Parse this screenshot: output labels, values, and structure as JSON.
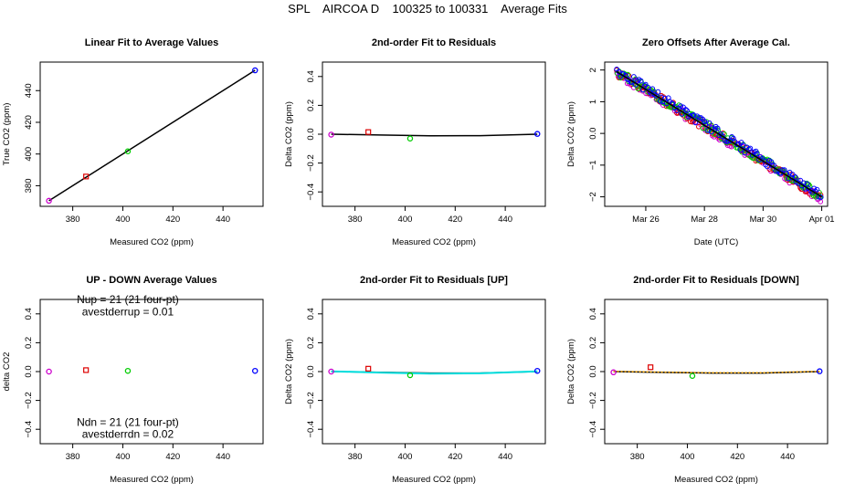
{
  "title": "SPL    AIRCOA D    100325 to 100331    Average Fits",
  "colors": {
    "black": "#000000",
    "red": "#dd0000",
    "green": "#00cc00",
    "blue": "#0000ff",
    "magenta": "#cc00cc",
    "cyan": "#00dddd",
    "orange": "#ffaa00"
  },
  "chart_data": [
    {
      "type": "scatter",
      "title": "Linear Fit to Average Values",
      "xlabel": "Measured CO2 (ppm)",
      "ylabel": "True CO2 (ppm)",
      "xlim": [
        367,
        456
      ],
      "ylim": [
        367,
        458
      ],
      "xticks": [
        380,
        400,
        420,
        440
      ],
      "yticks": [
        380,
        400,
        420,
        440
      ],
      "points": [
        {
          "x": 370.5,
          "y": 370.5,
          "color": "magenta"
        },
        {
          "x": 385.3,
          "y": 385.8,
          "color": "red"
        },
        {
          "x": 402.0,
          "y": 401.7,
          "color": "green"
        },
        {
          "x": 452.8,
          "y": 452.8,
          "color": "blue"
        }
      ],
      "lines": [
        {
          "color": "black",
          "points": [
            [
              370.5,
              370.5
            ],
            [
              452.8,
              452.8
            ]
          ]
        }
      ]
    },
    {
      "type": "scatter",
      "title": "2nd-order Fit to Residuals",
      "xlabel": "Measured CO2 (ppm)",
      "ylabel": "Delta CO2 (ppm)",
      "xlim": [
        367,
        456
      ],
      "ylim": [
        -0.5,
        0.5
      ],
      "xticks": [
        380,
        400,
        420,
        440
      ],
      "yticks": [
        -0.4,
        -0.2,
        0.0,
        0.2,
        0.4
      ],
      "points": [
        {
          "x": 370.5,
          "y": -0.003,
          "color": "magenta"
        },
        {
          "x": 385.3,
          "y": 0.015,
          "color": "red"
        },
        {
          "x": 402.0,
          "y": -0.03,
          "color": "green"
        },
        {
          "x": 452.8,
          "y": 0.002,
          "color": "blue"
        }
      ],
      "lines": [
        {
          "color": "black",
          "points": [
            [
              370.5,
              0.0
            ],
            [
              390,
              -0.006
            ],
            [
              410,
              -0.011
            ],
            [
              430,
              -0.01
            ],
            [
              452.8,
              0.0
            ]
          ]
        }
      ]
    },
    {
      "type": "scatter",
      "title": "Zero Offsets After Average Cal.",
      "xlabel": "Date (UTC)",
      "ylabel": "Delta CO2 (ppm)",
      "xlim": [
        24.6,
        32.2
      ],
      "ylim": [
        -2.3,
        2.25
      ],
      "xticks": [
        26,
        28,
        30,
        32
      ],
      "xticklabels": [
        "Mar 26",
        "Mar 28",
        "Mar 30",
        "Apr 01"
      ],
      "yticks": [
        -2,
        -1,
        0,
        1,
        2
      ],
      "series_colors": [
        "magenta",
        "red",
        "green",
        "blue"
      ],
      "trend": {
        "x_start": 25.0,
        "x_end": 32.0,
        "y_start": 1.95,
        "y_end": -2.0
      },
      "lines": [
        {
          "color": "black",
          "points": [
            [
              25.0,
              1.95
            ],
            [
              32.0,
              -2.0
            ]
          ]
        }
      ]
    },
    {
      "type": "scatter",
      "title": "UP - DOWN Average Values",
      "xlabel": "Measured CO2 (ppm)",
      "ylabel": "delta CO2",
      "xlim": [
        367,
        456
      ],
      "ylim": [
        -0.5,
        0.5
      ],
      "xticks": [
        380,
        400,
        420,
        440
      ],
      "yticks": [
        -0.4,
        -0.2,
        0.0,
        0.2,
        0.4
      ],
      "points": [
        {
          "x": 370.5,
          "y": 0.0,
          "color": "magenta"
        },
        {
          "x": 385.3,
          "y": 0.01,
          "color": "red"
        },
        {
          "x": 402.0,
          "y": 0.005,
          "color": "green"
        },
        {
          "x": 452.8,
          "y": 0.005,
          "color": "blue"
        }
      ],
      "lines": [],
      "annotations": [
        {
          "text": "Nup = 21 (21 four-pt)",
          "x": 402,
          "y": 0.475
        },
        {
          "text": "avestderrup =  0.01",
          "x": 402,
          "y": 0.39
        },
        {
          "text": "Ndn = 21 (21 four-pt)",
          "x": 402,
          "y": -0.375
        },
        {
          "text": "avestderrdn =  0.02",
          "x": 402,
          "y": -0.46
        }
      ]
    },
    {
      "type": "scatter",
      "title": "2nd-order Fit to Residuals [UP]",
      "xlabel": "Measured CO2 (ppm)",
      "ylabel": "Delta CO2 (ppm)",
      "xlim": [
        367,
        456
      ],
      "ylim": [
        -0.5,
        0.5
      ],
      "xticks": [
        380,
        400,
        420,
        440
      ],
      "yticks": [
        -0.4,
        -0.2,
        0.0,
        0.2,
        0.4
      ],
      "points": [
        {
          "x": 370.5,
          "y": 0.0,
          "color": "magenta"
        },
        {
          "x": 385.3,
          "y": 0.02,
          "color": "red"
        },
        {
          "x": 402.0,
          "y": -0.025,
          "color": "green"
        },
        {
          "x": 452.8,
          "y": 0.005,
          "color": "blue"
        }
      ],
      "lines": [
        {
          "color": "black",
          "points": [
            [
              370.5,
              0.0
            ],
            [
              390,
              -0.005
            ],
            [
              410,
              -0.01
            ],
            [
              430,
              -0.01
            ],
            [
              452.8,
              0.0
            ]
          ]
        },
        {
          "color": "cyan",
          "points": [
            [
              370.5,
              0.002
            ],
            [
              390,
              -0.007
            ],
            [
              410,
              -0.014
            ],
            [
              430,
              -0.012
            ],
            [
              452.8,
              0.002
            ]
          ]
        }
      ]
    },
    {
      "type": "scatter",
      "title": "2nd-order Fit to Residuals [DOWN]",
      "xlabel": "Measured CO2 (ppm)",
      "ylabel": "Delta CO2 (ppm)",
      "xlim": [
        367,
        456
      ],
      "ylim": [
        -0.5,
        0.5
      ],
      "xticks": [
        380,
        400,
        420,
        440
      ],
      "yticks": [
        -0.4,
        -0.2,
        0.0,
        0.2,
        0.4
      ],
      "points": [
        {
          "x": 370.5,
          "y": -0.005,
          "color": "magenta"
        },
        {
          "x": 385.3,
          "y": 0.03,
          "color": "red"
        },
        {
          "x": 402.0,
          "y": -0.03,
          "color": "green"
        },
        {
          "x": 452.8,
          "y": 0.002,
          "color": "blue"
        }
      ],
      "lines": [
        {
          "color": "black",
          "points": [
            [
              370.5,
              0.0
            ],
            [
              390,
              -0.006
            ],
            [
              410,
              -0.01
            ],
            [
              430,
              -0.01
            ],
            [
              452.8,
              0.0
            ]
          ]
        },
        {
          "color": "orange",
          "points": [
            [
              370.5,
              0.002
            ],
            [
              390,
              -0.004
            ],
            [
              410,
              -0.008
            ],
            [
              430,
              -0.008
            ],
            [
              452.8,
              0.002
            ]
          ]
        }
      ]
    }
  ]
}
